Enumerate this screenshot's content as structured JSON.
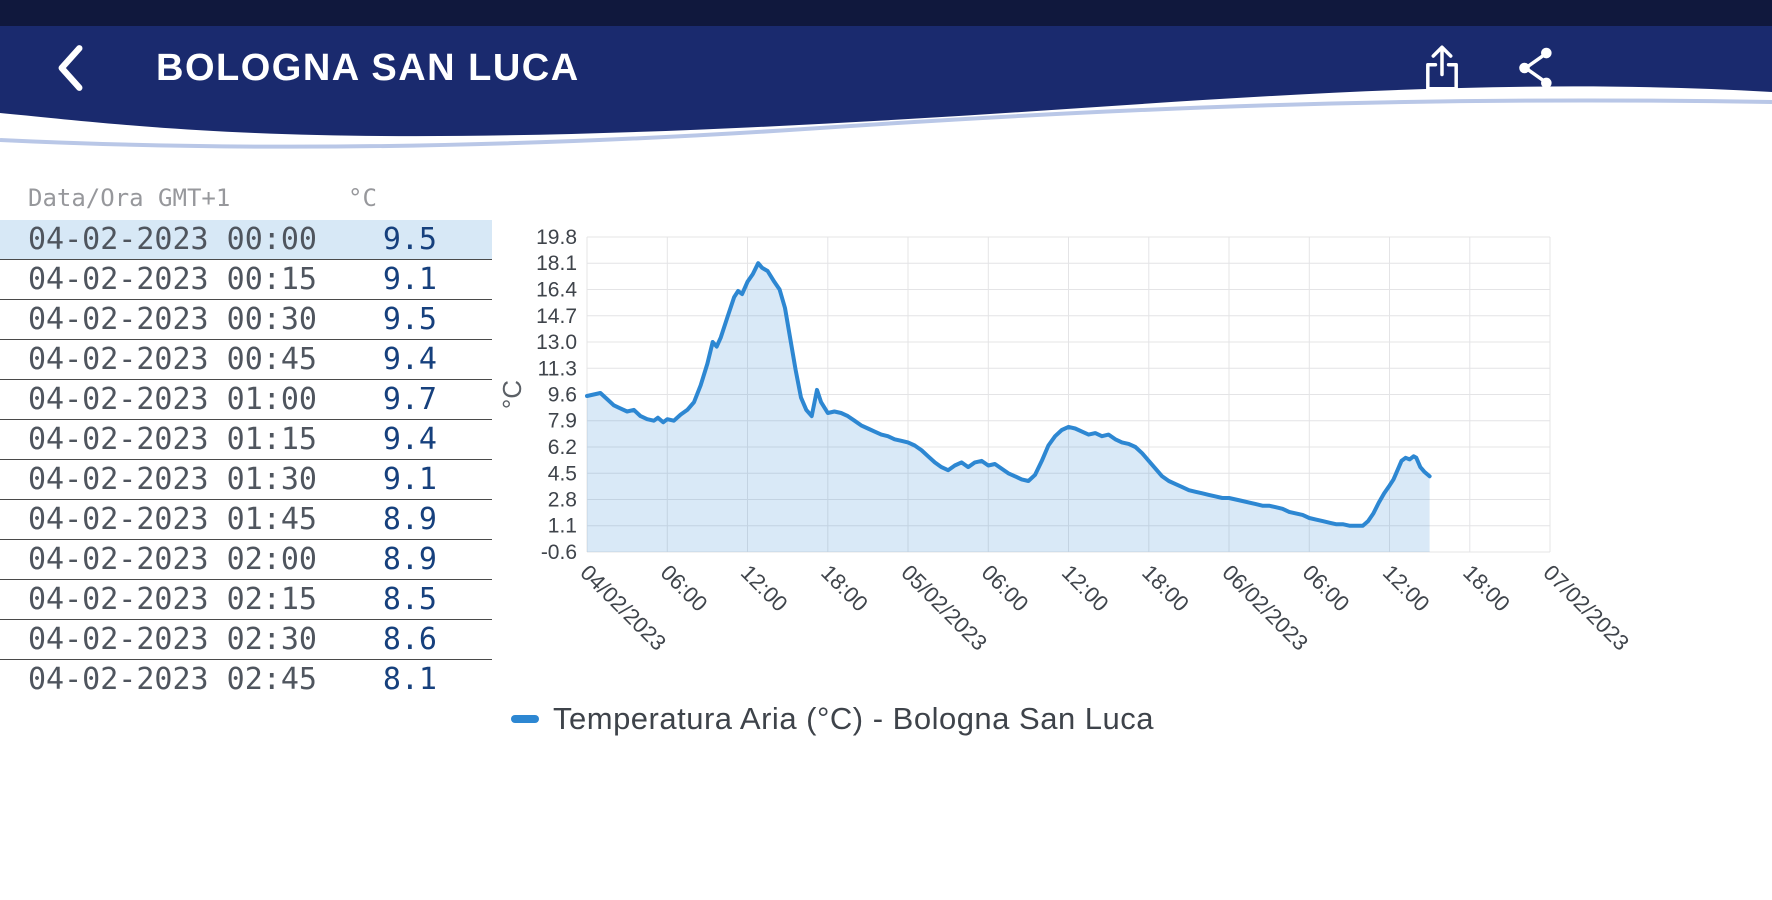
{
  "colors": {
    "header": "#1a2a6e",
    "status_bar": "#10183d",
    "wave": "#b9c7e7",
    "selected_row": "#d7e8f6",
    "line": "#2d87d2"
  },
  "header": {
    "title": "BOLOGNA SAN LUCA",
    "back_icon": "chevron-left-icon",
    "action_icons": [
      "upload-icon",
      "share-icon"
    ]
  },
  "table": {
    "columns": [
      "Data/Ora GMT+1",
      "°C"
    ],
    "selected_row_index": 0,
    "rows": [
      [
        "04-02-2023 00:00",
        "9.5"
      ],
      [
        "04-02-2023 00:15",
        "9.1"
      ],
      [
        "04-02-2023 00:30",
        "9.5"
      ],
      [
        "04-02-2023 00:45",
        "9.4"
      ],
      [
        "04-02-2023 01:00",
        "9.7"
      ],
      [
        "04-02-2023 01:15",
        "9.4"
      ],
      [
        "04-02-2023 01:30",
        "9.1"
      ],
      [
        "04-02-2023 01:45",
        "8.9"
      ],
      [
        "04-02-2023 02:00",
        "8.9"
      ],
      [
        "04-02-2023 02:15",
        "8.5"
      ],
      [
        "04-02-2023 02:30",
        "8.6"
      ],
      [
        "04-02-2023 02:45",
        "8.1"
      ]
    ]
  },
  "chart_data": {
    "type": "area",
    "title": "",
    "xlabel": "",
    "ylabel": "°C",
    "grid": true,
    "legend_position": "bottom",
    "ylim": [
      -0.6,
      19.8
    ],
    "y_ticks": [
      19.8,
      18.1,
      16.4,
      14.7,
      13.0,
      11.3,
      9.6,
      7.9,
      6.2,
      4.5,
      2.8,
      1.1,
      -0.6
    ],
    "xlim_hours": [
      0,
      72
    ],
    "x_ticks_hours": [
      0,
      6,
      12,
      18,
      24,
      30,
      36,
      42,
      48,
      54,
      60,
      66,
      72
    ],
    "x_tick_labels": [
      "04/02/2023",
      "06:00",
      "12:00",
      "18:00",
      "05/02/2023",
      "06:00",
      "12:00",
      "18:00",
      "06/02/2023",
      "06:00",
      "12:00",
      "18:00",
      "07/02/2023"
    ],
    "series": [
      {
        "name": "Temperatura Aria (°C) - Bologna San Luca",
        "color": "#2d87d2",
        "fill": "rgba(46,134,210,0.18)",
        "points": [
          [
            0,
            9.5
          ],
          [
            0.5,
            9.6
          ],
          [
            1,
            9.7
          ],
          [
            1.5,
            9.3
          ],
          [
            2,
            8.9
          ],
          [
            2.5,
            8.7
          ],
          [
            3,
            8.5
          ],
          [
            3.5,
            8.6
          ],
          [
            4,
            8.2
          ],
          [
            4.5,
            8.0
          ],
          [
            5,
            7.9
          ],
          [
            5.3,
            8.1
          ],
          [
            5.7,
            7.8
          ],
          [
            6,
            8.0
          ],
          [
            6.5,
            7.9
          ],
          [
            7,
            8.3
          ],
          [
            7.5,
            8.6
          ],
          [
            8,
            9.1
          ],
          [
            8.5,
            10.2
          ],
          [
            9,
            11.6
          ],
          [
            9.4,
            13.0
          ],
          [
            9.7,
            12.7
          ],
          [
            10,
            13.3
          ],
          [
            10.5,
            14.6
          ],
          [
            11,
            15.9
          ],
          [
            11.3,
            16.3
          ],
          [
            11.6,
            16.1
          ],
          [
            12,
            16.9
          ],
          [
            12.4,
            17.4
          ],
          [
            12.8,
            18.1
          ],
          [
            13.1,
            17.8
          ],
          [
            13.5,
            17.6
          ],
          [
            14,
            16.9
          ],
          [
            14.4,
            16.4
          ],
          [
            14.8,
            15.2
          ],
          [
            15.2,
            13.2
          ],
          [
            15.6,
            11.2
          ],
          [
            16,
            9.4
          ],
          [
            16.4,
            8.6
          ],
          [
            16.8,
            8.2
          ],
          [
            17.2,
            9.9
          ],
          [
            17.5,
            9.1
          ],
          [
            18,
            8.4
          ],
          [
            18.5,
            8.5
          ],
          [
            19,
            8.4
          ],
          [
            19.5,
            8.2
          ],
          [
            20,
            7.9
          ],
          [
            20.5,
            7.6
          ],
          [
            21,
            7.4
          ],
          [
            21.5,
            7.2
          ],
          [
            22,
            7.0
          ],
          [
            22.5,
            6.9
          ],
          [
            23,
            6.7
          ],
          [
            23.5,
            6.6
          ],
          [
            24,
            6.5
          ],
          [
            24.5,
            6.3
          ],
          [
            25,
            6.0
          ],
          [
            25.5,
            5.6
          ],
          [
            26,
            5.2
          ],
          [
            26.5,
            4.9
          ],
          [
            27,
            4.7
          ],
          [
            27.5,
            5.0
          ],
          [
            28,
            5.2
          ],
          [
            28.5,
            4.9
          ],
          [
            29,
            5.2
          ],
          [
            29.5,
            5.3
          ],
          [
            30,
            5.0
          ],
          [
            30.5,
            5.1
          ],
          [
            31,
            4.8
          ],
          [
            31.5,
            4.5
          ],
          [
            32,
            4.3
          ],
          [
            32.5,
            4.1
          ],
          [
            33,
            4.0
          ],
          [
            33.5,
            4.4
          ],
          [
            34,
            5.3
          ],
          [
            34.5,
            6.3
          ],
          [
            35,
            6.9
          ],
          [
            35.5,
            7.3
          ],
          [
            36,
            7.5
          ],
          [
            36.5,
            7.4
          ],
          [
            37,
            7.2
          ],
          [
            37.5,
            7.0
          ],
          [
            38,
            7.1
          ],
          [
            38.5,
            6.9
          ],
          [
            39,
            7.0
          ],
          [
            39.5,
            6.7
          ],
          [
            40,
            6.5
          ],
          [
            40.5,
            6.4
          ],
          [
            41,
            6.2
          ],
          [
            41.5,
            5.8
          ],
          [
            42,
            5.3
          ],
          [
            42.5,
            4.8
          ],
          [
            43,
            4.3
          ],
          [
            43.5,
            4.0
          ],
          [
            44,
            3.8
          ],
          [
            44.5,
            3.6
          ],
          [
            45,
            3.4
          ],
          [
            45.5,
            3.3
          ],
          [
            46,
            3.2
          ],
          [
            46.5,
            3.1
          ],
          [
            47,
            3.0
          ],
          [
            47.5,
            2.9
          ],
          [
            48,
            2.9
          ],
          [
            48.5,
            2.8
          ],
          [
            49,
            2.7
          ],
          [
            49.5,
            2.6
          ],
          [
            50,
            2.5
          ],
          [
            50.5,
            2.4
          ],
          [
            51,
            2.4
          ],
          [
            51.5,
            2.3
          ],
          [
            52,
            2.2
          ],
          [
            52.5,
            2.0
          ],
          [
            53,
            1.9
          ],
          [
            53.5,
            1.8
          ],
          [
            54,
            1.6
          ],
          [
            54.5,
            1.5
          ],
          [
            55,
            1.4
          ],
          [
            55.5,
            1.3
          ],
          [
            56,
            1.2
          ],
          [
            56.5,
            1.2
          ],
          [
            57,
            1.1
          ],
          [
            57.5,
            1.1
          ],
          [
            58,
            1.1
          ],
          [
            58.4,
            1.4
          ],
          [
            58.8,
            1.9
          ],
          [
            59.2,
            2.6
          ],
          [
            59.6,
            3.2
          ],
          [
            60,
            3.7
          ],
          [
            60.3,
            4.1
          ],
          [
            60.6,
            4.7
          ],
          [
            60.9,
            5.3
          ],
          [
            61.2,
            5.5
          ],
          [
            61.5,
            5.4
          ],
          [
            61.8,
            5.6
          ],
          [
            62,
            5.5
          ],
          [
            62.3,
            4.9
          ],
          [
            62.6,
            4.6
          ],
          [
            63,
            4.3
          ]
        ]
      }
    ]
  }
}
